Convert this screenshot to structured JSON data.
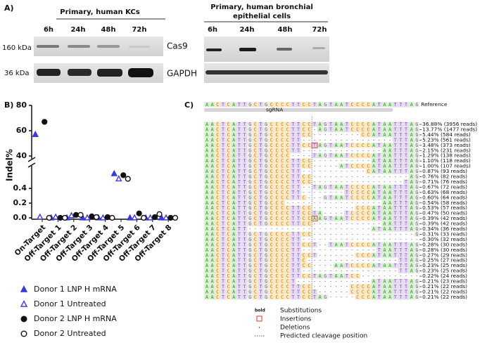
{
  "panel_a": {
    "label": "A)",
    "left_title": "Primary, human KCs",
    "right_title": [
      "Primary, human bronchial",
      "epithelial cells"
    ],
    "left_times": [
      "6h",
      "24h",
      "48h",
      "72h"
    ],
    "right_times": [
      "6h",
      "24h",
      "48h",
      "72h"
    ],
    "markers": [
      "160 kDa",
      "36 kDa"
    ],
    "proteins": [
      "Cas9",
      "GAPDH"
    ]
  },
  "chart_data": {
    "type": "scatter",
    "label": "B)",
    "ylabel": "Indel%",
    "categories": [
      "On-Target",
      "Off-Target 1",
      "Off-Target 2",
      "Off-Target 3",
      "Off-Target 4",
      "Off-Target 5",
      "Off-Target 6",
      "Off-Target 7",
      "Off-Target 8"
    ],
    "series": [
      {
        "name": "Donor 1 LNP H mRNA",
        "color": "#3b3bd8",
        "marker": "triangle",
        "filled": true,
        "values": [
          57,
          0,
          0,
          0,
          0,
          0.6,
          0,
          0,
          0
        ]
      },
      {
        "name": "Donor 1 Untreated",
        "color": "#3b3bd8",
        "marker": "triangle",
        "filled": false,
        "values": [
          0.01,
          0.01,
          0.03,
          0,
          0,
          0.53,
          0,
          0,
          0
        ]
      },
      {
        "name": "Donor 2 LNP H mRNA",
        "color": "#111111",
        "marker": "circle",
        "filled": true,
        "values": [
          67,
          0,
          0.04,
          0.02,
          0.01,
          0.58,
          0.06,
          0.01,
          0
        ]
      },
      {
        "name": "Donor 2 Untreated",
        "color": "#111111",
        "marker": "circle",
        "filled": false,
        "values": [
          0,
          0,
          0.04,
          0.01,
          0,
          0.53,
          0,
          0.05,
          0
        ]
      }
    ],
    "ylim_lower": [
      0,
      0.65
    ],
    "yticks_lower": [
      {
        "value": 0,
        "label": "0.0"
      },
      {
        "value": 0.2,
        "label": "0.2"
      },
      {
        "value": 0.4,
        "label": "0.4"
      }
    ],
    "ylim_upper": [
      40,
      80
    ],
    "yticks_upper": [
      40,
      60,
      80
    ]
  },
  "panel_c": {
    "label": "C)",
    "reference": "AACTCATTGCTGCCCCTTCCTAGTAATCCCCATAATTTAG",
    "reference_label": "Reference",
    "sgrna_label": "sgRNA",
    "rows": [
      {
        "seq": "AACTCATTGCTGCCCCTTCCTAGTAATCCCCATAATTTAG",
        "label": "36.88% (3956 reads)"
      },
      {
        "seq": "AACTCATTGCTGCCCCTTCC-AGTAATCCCCATAATTTAG",
        "label": "13.77% (1477 reads)"
      },
      {
        "seq": "AACTCATTGCTGCCCCTTCC---------CCATAATTTAG",
        "label": "5.44% (584 reads)"
      },
      {
        "seq": "AACTCATTGCTGCCCCTT-----------------TTTAG",
        "label": "5.23% (561 reads)"
      },
      {
        "seq": "AACTCATTGCTGCCCCTTCCTAGTAATCCCCATAATTTAG",
        "label": "3.48% (373 reads)",
        "insertion": 20
      },
      {
        "seq": "AACTCATTGCTGCCCCTT---------------AATTTAG",
        "label": "2.15% (231 reads)"
      },
      {
        "seq": "AACTCATTGCTGCCCC----TAGTAATCCCCATAATTTAG",
        "label": "1.29% (138 reads)"
      },
      {
        "seq": "AACTCATTGCTGCCCCTTCC-----------ATAATTTAG",
        "label": "1.10% (118 reads)"
      },
      {
        "seq": "AACTCATTGCTGCCCCTTCC-----ATCCCCATAATTTAG",
        "label": "1.00% (107 reads)"
      },
      {
        "seq": "AACTCATTGCTGCCCCTT------------CATAATTTAG",
        "label": "0.87% (93 reads)"
      },
      {
        "seq": "AACTCATTGCTGCCCCTTCC------------------AG",
        "label": "0.76% (82 reads)"
      },
      {
        "seq": "AACTCATTGCTGCCCCTTCC-----------------TAG",
        "label": "0.71% (76 reads)"
      },
      {
        "seq": "AACTCATTGCTGCCCCTT--TAGTAATCCCCATAATTTAG",
        "label": "0.67% (72 reads)"
      },
      {
        "seq": "AACTCATTGCTGCCCCTT--------TCCCCATAATTTAG",
        "label": "0.63% (68 reads)"
      },
      {
        "seq": "AACTCATTGCTGCCCCTTC---GTAATCCCCATAATTTAG",
        "label": "0.60% (64 reads)"
      },
      {
        "seq": "AACTCATTGCTGCCC------------------AATTTAG",
        "label": "0.54% (58 reads)"
      },
      {
        "seq": "AACTCATTGCTGCCCCTTCC--------CCCATAATTTAG",
        "label": "0.53% (57 reads)"
      },
      {
        "seq": "AACTCATTGCTGCCCCTTCCTA----TCCCCATAATTTAG",
        "label": "0.47% (50 reads)"
      },
      {
        "seq": "AACTCATTGCTGCCCCTTCCAAGTAATCCCCATAATTTAG",
        "label": "0.39% (42 reads)",
        "insertion": 20
      },
      {
        "seq": "AACTCATTGCTGCCCCTTCC-------------AATTTAG",
        "label": "0.39% (42 reads)"
      },
      {
        "seq": "AACTCATT-----------------------ATAATTTAG",
        "label": "0.34% (36 reads)"
      },
      {
        "seq": "AACTCATTGCTGCCCCTTCC-------------------G",
        "label": "0.31% (33 reads)"
      },
      {
        "seq": "AACTCATTGCTGCCCCTT----------------------",
        "label": "0.30% (32 reads)"
      },
      {
        "seq": "AACTCATTGCTGCCCCTTCCT--TAATCCCCATAATTTAG",
        "label": "0.28% (30 reads)"
      },
      {
        "seq": "AACTCATTGCTGCCCCTT--------------TAATTTAG",
        "label": "0.28% (30 reads)"
      },
      {
        "seq": "AACTCATTGCTGCCCCTTCCT-------CCCATAATTTAG",
        "label": "0.27% (29 reads)"
      },
      {
        "seq": "AACTCATTGCTGCCCCTTC-----------------TTAG",
        "label": "0.25% (27 reads)"
      },
      {
        "seq": "AACTCATTGCTGCCCCTTCC----AATCCCCATAATTTAG",
        "label": "0.23% (25 reads)"
      },
      {
        "seq": "AACTCATTGCTGCCCCTT------------------TTAG",
        "label": "0.23% (25 reads)"
      },
      {
        "seq": "AACTCATTGCTGCCCCTTCCTAGTAATCC-----------",
        "label": "0.22% (24 reads)"
      },
      {
        "seq": "AACTCATTGCTGCCCCT--------------ATAATTTAG",
        "label": "0.21% (23 reads)"
      },
      {
        "seq": "AACTCATTGCTGCCCCTTCC-------CCCCATAATTTAG",
        "label": "0.21% (22 reads)"
      },
      {
        "seq": "AACTCATTGCTGCCCCTTCCT------CCCCATAATTTAG",
        "label": "0.21% (22 reads)"
      },
      {
        "seq": "AACTCATTGCTGCCCCTTCCTAG-----CCCATAATTTAG",
        "label": "0.21% (22 reads)"
      }
    ],
    "legend": {
      "bold": "bold",
      "substitutions": "Substitutions",
      "insertions": "Insertions",
      "deletions": "Deletions",
      "cleavage": "Predicted cleavage position"
    }
  }
}
